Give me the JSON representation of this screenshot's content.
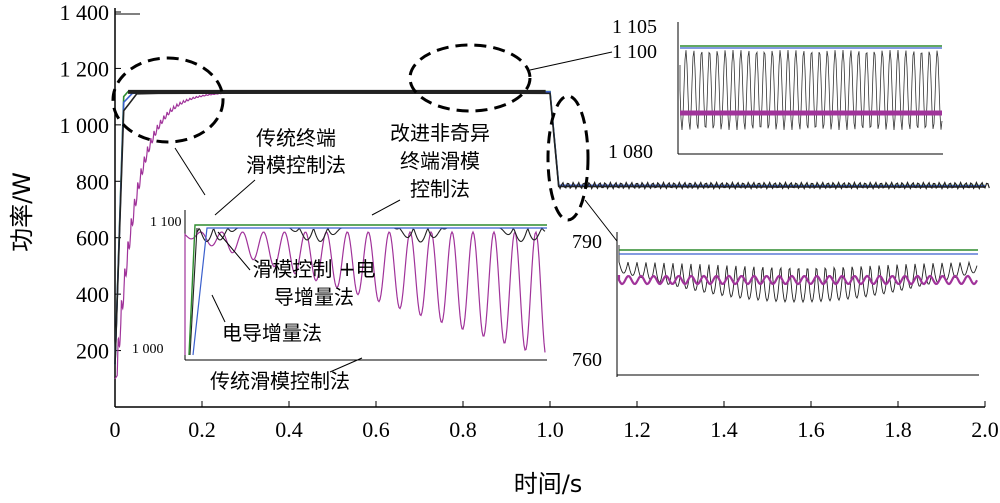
{
  "chart_data": {
    "type": "line",
    "xlabel": "时间/s",
    "ylabel": "功率/W",
    "xlim": [
      0,
      2.0
    ],
    "ylim": [
      0,
      1400
    ],
    "x_ticks": [
      "0",
      "0.2",
      "0.4",
      "0.6",
      "0.8",
      "1.0",
      "1.2",
      "1.4",
      "1.6",
      "1.8",
      "2.0"
    ],
    "y_ticks": [
      "200",
      "400",
      "600",
      "800",
      "1 000",
      "1 200",
      "1 400"
    ],
    "grid": false,
    "series": [
      {
        "name": "改进非奇异终端滑模控制法",
        "color": "#2e8b2e",
        "x": [
          0,
          0.02,
          0.03,
          0.1,
          0.5,
          0.99,
          1.0,
          1.02,
          1.5,
          2.0
        ],
        "y": [
          150,
          1100,
          1118,
          1118,
          1118,
          1118,
          1118,
          785,
          785,
          785
        ]
      },
      {
        "name": "传统终端滑模控制法",
        "color": "#3a5fcd",
        "x": [
          0,
          0.02,
          0.04,
          0.1,
          0.5,
          0.99,
          1.0,
          1.02,
          1.5,
          2.0
        ],
        "y": [
          150,
          1080,
          1112,
          1116,
          1117,
          1117,
          1117,
          786,
          784,
          784
        ]
      },
      {
        "name": "滑模控制+电导增量法",
        "color": "#222222",
        "x": [
          0,
          0.02,
          0.05,
          0.1,
          0.5,
          0.99,
          1.0,
          1.02,
          1.5,
          2.0
        ],
        "y": [
          150,
          1050,
          1110,
          1112,
          1113,
          1112,
          1112,
          782,
          780,
          780
        ]
      },
      {
        "name": "传统滑模控制法",
        "color": "#a0339a",
        "x": [
          0,
          0.03,
          0.06,
          0.1,
          0.15,
          0.2,
          0.3,
          0.5,
          0.99,
          1.0,
          1.02,
          1.5,
          2.0
        ],
        "y": [
          100,
          500,
          800,
          950,
          1040,
          1090,
          1112,
          1117,
          1117,
          1117,
          786,
          784,
          784
        ]
      }
    ],
    "insets": [
      {
        "ytick_top": "1 100",
        "ytick_bottom": "1 000"
      },
      {
        "ytick_top": "1 105",
        "ytick_mid": "1 100",
        "ytick_bottom": "1 080"
      },
      {
        "ytick_top": "790",
        "ytick_bottom": "760"
      }
    ],
    "annotations": {
      "traditional_terminal": [
        "传统终端",
        "滑模控制法"
      ],
      "improved_nonsingular": [
        "改进非奇异",
        "终端滑模",
        "控制法"
      ],
      "sm_inc": [
        "滑模控制 +电",
        "导增量法"
      ],
      "inc_cond": "电导增量法",
      "traditional_sm": "传统滑模控制法"
    }
  }
}
